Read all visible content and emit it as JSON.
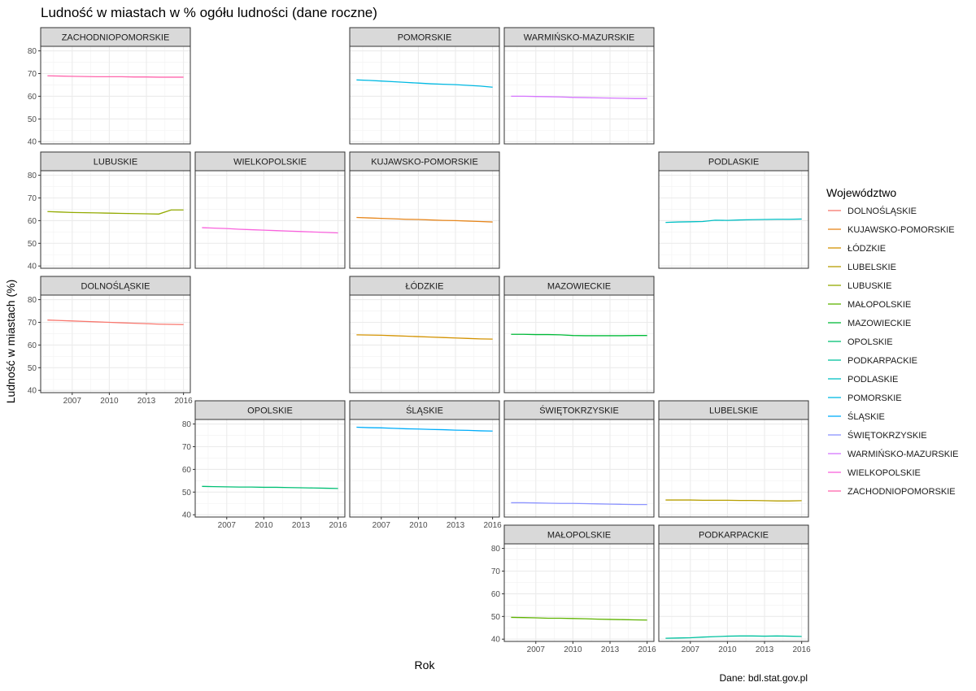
{
  "chart_data": {
    "type": "line",
    "title": "Ludność w miastach w % ogółu ludności (dane roczne)",
    "xlabel": "Rok",
    "ylabel": "Ludność w miastach (%)",
    "caption": "Dane: bdl.stat.gov.pl",
    "xlim": [
      2005,
      2016
    ],
    "ylim": [
      39,
      82
    ],
    "x_ticks": [
      2007,
      2010,
      2013,
      2016
    ],
    "y_ticks": [
      40,
      50,
      60,
      70,
      80
    ],
    "grid": true,
    "legend": {
      "title": "Województwo",
      "placement": "right"
    },
    "x": [
      2005,
      2006,
      2007,
      2008,
      2009,
      2010,
      2011,
      2012,
      2013,
      2014,
      2015,
      2016
    ],
    "series": [
      {
        "name": "DOLNOŚLĄSKIE",
        "color": "#F8766D",
        "grid_row": 2,
        "grid_col": 0,
        "values": [
          71.0,
          70.8,
          70.6,
          70.4,
          70.2,
          70.0,
          69.8,
          69.6,
          69.4,
          69.2,
          69.1,
          69.0
        ]
      },
      {
        "name": "KUJAWSKO-POMORSKIE",
        "color": "#E7861B",
        "grid_row": 1,
        "grid_col": 2,
        "values": [
          61.4,
          61.2,
          61.0,
          60.8,
          60.6,
          60.5,
          60.3,
          60.1,
          60.0,
          59.8,
          59.6,
          59.4
        ]
      },
      {
        "name": "ŁÓDZKIE",
        "color": "#D39200",
        "grid_row": 2,
        "grid_col": 2,
        "values": [
          64.5,
          64.4,
          64.3,
          64.1,
          63.9,
          63.7,
          63.5,
          63.3,
          63.1,
          62.9,
          62.7,
          62.6
        ]
      },
      {
        "name": "LUBELSKIE",
        "color": "#B79F00",
        "grid_row": 3,
        "grid_col": 4,
        "values": [
          46.5,
          46.5,
          46.5,
          46.4,
          46.4,
          46.4,
          46.3,
          46.3,
          46.2,
          46.1,
          46.1,
          46.2
        ]
      },
      {
        "name": "LUBUSKIE",
        "color": "#93AA00",
        "grid_row": 1,
        "grid_col": 0,
        "values": [
          64.0,
          63.8,
          63.6,
          63.5,
          63.4,
          63.3,
          63.2,
          63.1,
          63.0,
          62.9,
          64.7,
          64.7
        ]
      },
      {
        "name": "MAŁOPOLSKIE",
        "color": "#5EB300",
        "grid_row": 4,
        "grid_col": 3,
        "values": [
          49.6,
          49.5,
          49.4,
          49.2,
          49.2,
          49.1,
          49.0,
          48.8,
          48.7,
          48.6,
          48.5,
          48.4
        ]
      },
      {
        "name": "MAZOWIECKIE",
        "color": "#00BA38",
        "grid_row": 2,
        "grid_col": 3,
        "values": [
          64.7,
          64.7,
          64.6,
          64.6,
          64.5,
          64.2,
          64.1,
          64.1,
          64.1,
          64.1,
          64.2,
          64.2
        ]
      },
      {
        "name": "OPOLSKIE",
        "color": "#00BF74",
        "grid_row": 3,
        "grid_col": 1,
        "values": [
          52.5,
          52.4,
          52.3,
          52.2,
          52.2,
          52.1,
          52.1,
          52.0,
          51.9,
          51.8,
          51.7,
          51.6
        ]
      },
      {
        "name": "PODKARPACKIE",
        "color": "#00C19F",
        "grid_row": 4,
        "grid_col": 4,
        "values": [
          40.4,
          40.5,
          40.6,
          40.9,
          41.1,
          41.3,
          41.4,
          41.4,
          41.3,
          41.4,
          41.3,
          41.2
        ]
      },
      {
        "name": "PODLASKIE",
        "color": "#00BFC4",
        "grid_row": 1,
        "grid_col": 4,
        "values": [
          59.2,
          59.4,
          59.5,
          59.6,
          60.2,
          60.1,
          60.3,
          60.4,
          60.5,
          60.6,
          60.6,
          60.7
        ]
      },
      {
        "name": "POMORSKIE",
        "color": "#00B9E3",
        "grid_row": 0,
        "grid_col": 2,
        "values": [
          67.2,
          67.0,
          66.7,
          66.4,
          66.1,
          65.8,
          65.5,
          65.3,
          65.1,
          64.8,
          64.5,
          64.0
        ]
      },
      {
        "name": "ŚLĄSKIE",
        "color": "#00ADFA",
        "grid_row": 3,
        "grid_col": 2,
        "values": [
          78.6,
          78.4,
          78.3,
          78.1,
          77.9,
          77.8,
          77.6,
          77.5,
          77.3,
          77.2,
          77.0,
          76.9
        ]
      },
      {
        "name": "ŚWIĘTOKRZYSKIE",
        "color": "#8B93FF",
        "grid_row": 3,
        "grid_col": 3,
        "values": [
          45.3,
          45.3,
          45.2,
          45.1,
          45.0,
          45.0,
          44.9,
          44.8,
          44.7,
          44.6,
          44.5,
          44.5
        ]
      },
      {
        "name": "WARMIŃSKO-MAZURSKIE",
        "color": "#D575FE",
        "grid_row": 0,
        "grid_col": 3,
        "values": [
          60.0,
          60.0,
          59.9,
          59.8,
          59.7,
          59.5,
          59.4,
          59.3,
          59.2,
          59.1,
          59.0,
          59.0
        ]
      },
      {
        "name": "WIELKOPOLSKIE",
        "color": "#F962DD",
        "grid_row": 1,
        "grid_col": 1,
        "values": [
          56.9,
          56.7,
          56.5,
          56.2,
          56.0,
          55.8,
          55.6,
          55.4,
          55.2,
          55.0,
          54.8,
          54.6
        ]
      },
      {
        "name": "ZACHODNIOPOMORSKIE",
        "color": "#FF65AC",
        "grid_row": 0,
        "grid_col": 0,
        "values": [
          69.0,
          68.9,
          68.8,
          68.7,
          68.6,
          68.6,
          68.6,
          68.5,
          68.5,
          68.4,
          68.4,
          68.4
        ]
      }
    ]
  }
}
